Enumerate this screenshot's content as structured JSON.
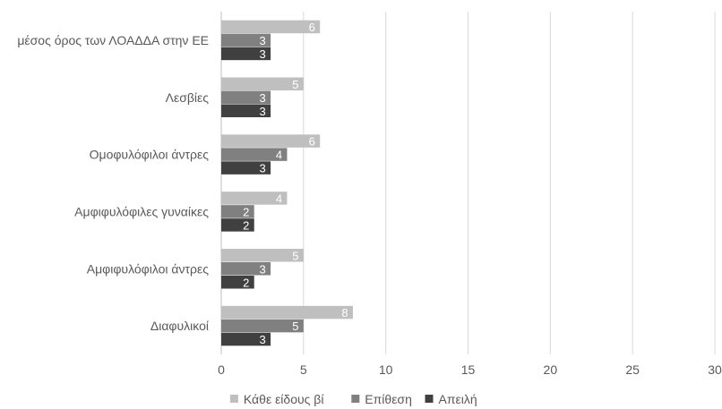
{
  "chart_data": {
    "type": "bar",
    "orientation": "horizontal",
    "categories": [
      "μέσος όρος των ΛΟΑΔΔΑ στην ΕΕ",
      "Λεσβίες",
      "Ομοφυλόφιλοι άντρες",
      "Αμφιφυλόφιλες γυναίκες",
      "Αμφιφυλόφιλοι άντρες",
      "Διαφυλικοί"
    ],
    "series": [
      {
        "name": "Κάθε είδους βί",
        "color": "#bfbfbf",
        "values": [
          6,
          5,
          6,
          4,
          5,
          8
        ]
      },
      {
        "name": "Επίθεση",
        "color": "#808080",
        "values": [
          3,
          3,
          4,
          2,
          3,
          5
        ]
      },
      {
        "name": "Απειλή",
        "color": "#404040",
        "values": [
          3,
          3,
          3,
          2,
          2,
          3
        ]
      }
    ],
    "xlim": [
      0,
      30
    ],
    "xticks": [
      0,
      5,
      10,
      15,
      20,
      25,
      30
    ],
    "grid": "vertical",
    "legend": "bottom-center",
    "data_labels": true,
    "title": "",
    "xlabel": "",
    "ylabel": ""
  }
}
